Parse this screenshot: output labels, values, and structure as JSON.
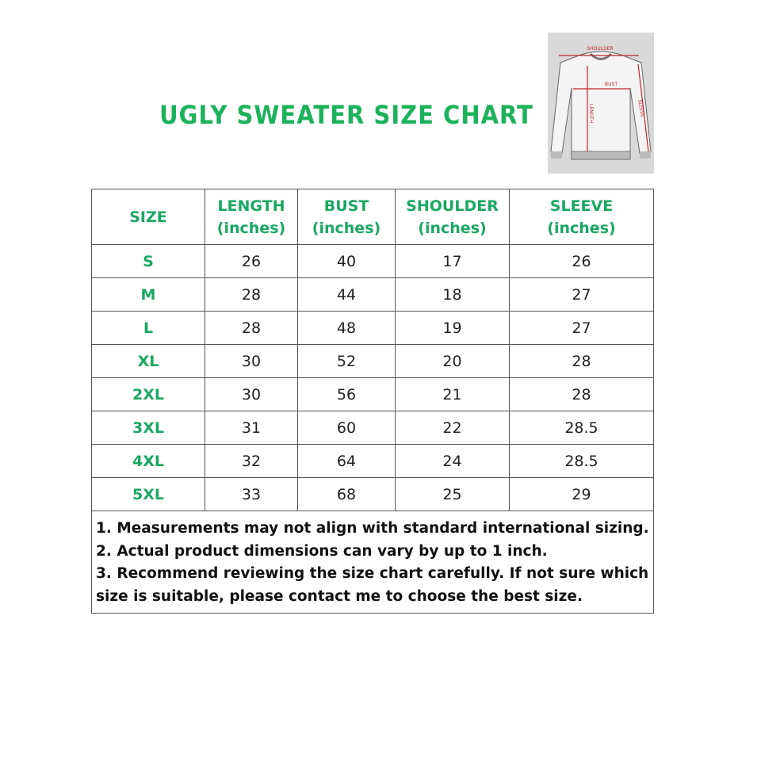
{
  "title": "UGLY SWEATER SIZE CHART",
  "diagram": {
    "labels": [
      "SHOULDER",
      "BUST",
      "LENGTH",
      "SLEEVE"
    ]
  },
  "table": {
    "headers": [
      {
        "line1": "SIZE",
        "line2": ""
      },
      {
        "line1": "LENGTH",
        "line2": "(inches)"
      },
      {
        "line1": "BUST",
        "line2": "(inches)"
      },
      {
        "line1": "SHOULDER",
        "line2": "(inches)"
      },
      {
        "line1": "SLEEVE",
        "line2": "(inches)"
      }
    ],
    "rows": [
      [
        "S",
        "26",
        "40",
        "17",
        "26"
      ],
      [
        "M",
        "28",
        "44",
        "18",
        "27"
      ],
      [
        "L",
        "28",
        "48",
        "19",
        "27"
      ],
      [
        "XL",
        "30",
        "52",
        "20",
        "28"
      ],
      [
        "2XL",
        "30",
        "56",
        "21",
        "28"
      ],
      [
        "3XL",
        "31",
        "60",
        "22",
        "28.5"
      ],
      [
        "4XL",
        "32",
        "64",
        "24",
        "28.5"
      ],
      [
        "5XL",
        "33",
        "68",
        "25",
        "29"
      ]
    ]
  },
  "notes": [
    "1. Measurements may not align with standard international sizing.",
    "2. Actual product dimensions can vary by up to 1 inch.",
    "3. Recommend reviewing the size chart carefully. If not sure which",
    "size is suitable, please contact me to choose the best size."
  ],
  "colors": {
    "accent": "#1cb25c",
    "measure": "#c0262c"
  }
}
